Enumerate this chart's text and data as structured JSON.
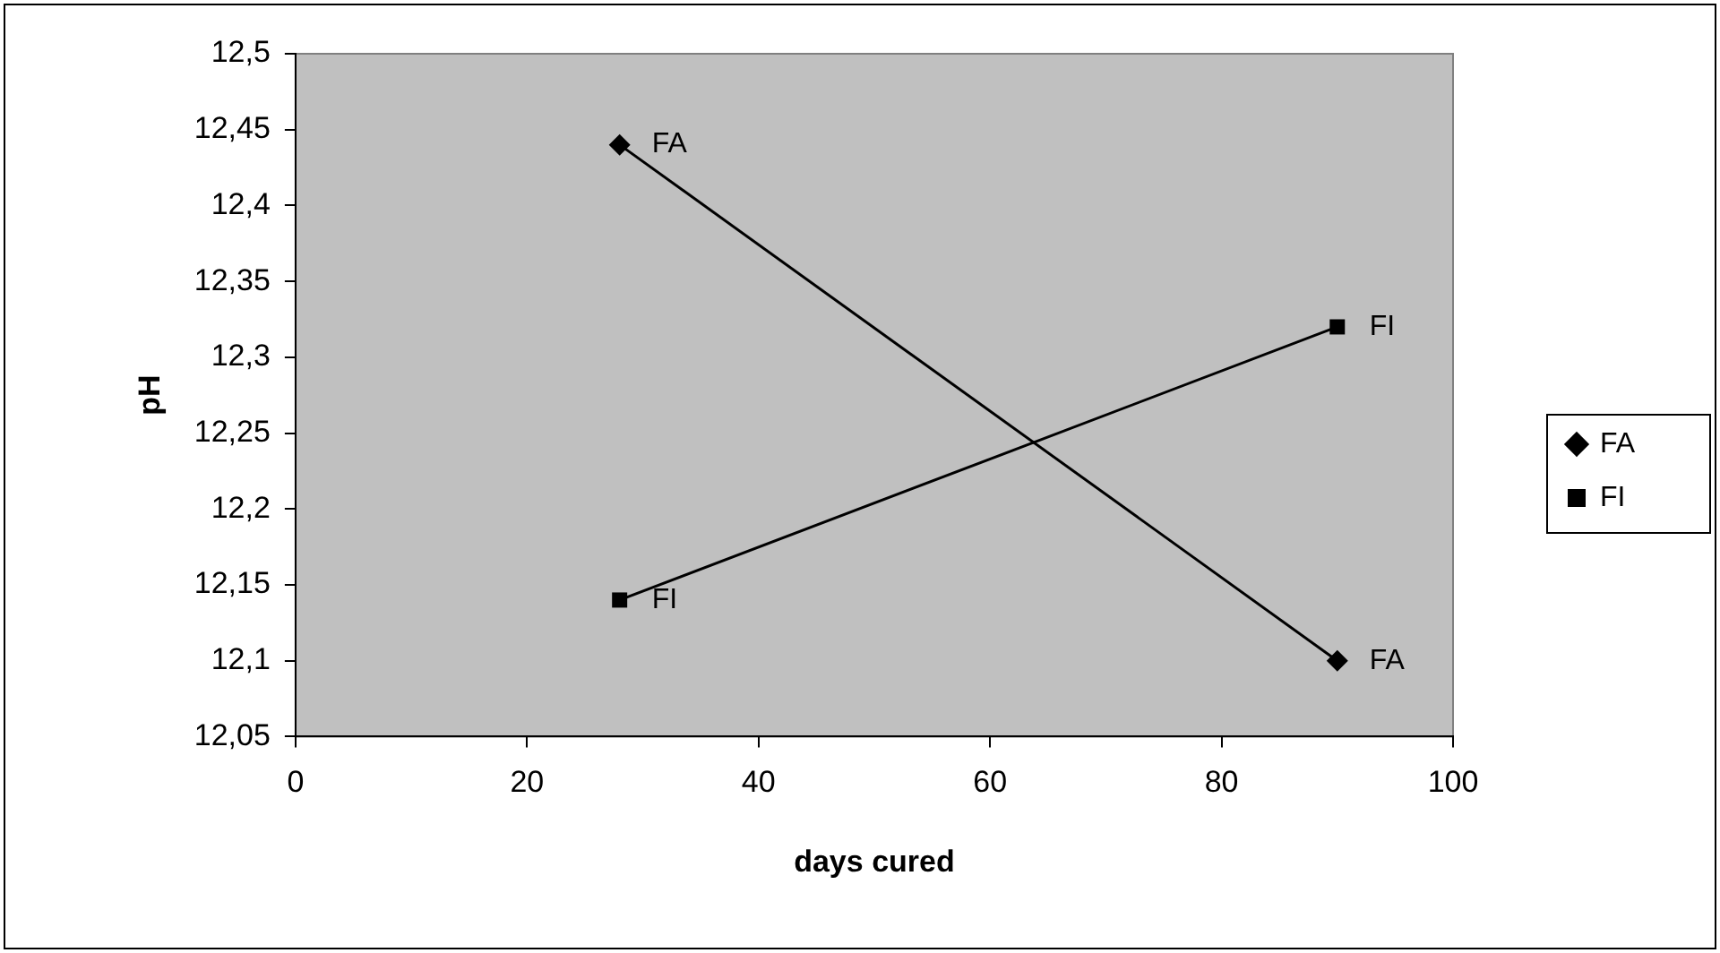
{
  "chart_data": {
    "type": "line",
    "xlabel": "days cured",
    "ylabel": "pH",
    "x": [
      28,
      90
    ],
    "xlim": [
      0,
      100
    ],
    "xticks": [
      0,
      20,
      40,
      60,
      80,
      100
    ],
    "ylim": [
      12.05,
      12.5
    ],
    "yticks": [
      {
        "value": 12.05,
        "label": "12,05"
      },
      {
        "value": 12.1,
        "label": "12,1"
      },
      {
        "value": 12.15,
        "label": "12,15"
      },
      {
        "value": 12.2,
        "label": "12,2"
      },
      {
        "value": 12.25,
        "label": "12,25"
      },
      {
        "value": 12.3,
        "label": "12,3"
      },
      {
        "value": 12.35,
        "label": "12,35"
      },
      {
        "value": 12.4,
        "label": "12,4"
      },
      {
        "value": 12.45,
        "label": "12,45"
      },
      {
        "value": 12.5,
        "label": "12,5"
      }
    ],
    "series": [
      {
        "name": "FA",
        "color": "#000000",
        "marker": "diamond",
        "values": [
          12.44,
          12.1
        ]
      },
      {
        "name": "FI",
        "color": "#000000",
        "marker": "square",
        "values": [
          12.14,
          12.32
        ]
      }
    ],
    "grid": false,
    "legend": "right"
  }
}
